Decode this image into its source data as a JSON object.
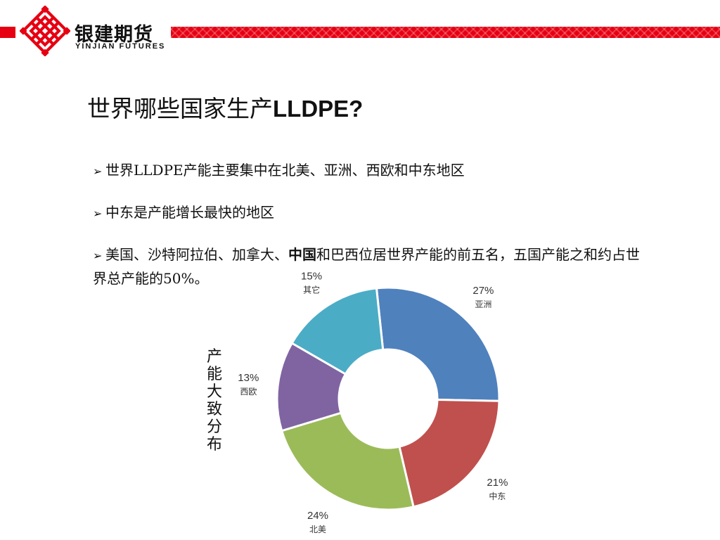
{
  "header": {
    "logo_cn": "银建期货",
    "logo_en": "YINJIAN FUTURES",
    "logo_icon": "knot-logo-icon",
    "brand_color": "#e60012"
  },
  "title": {
    "prefix": "世界哪些国家生产",
    "latin": "LLDPE?"
  },
  "bullets": [
    {
      "text": "世界LLDPE产能主要集中在北美、亚洲、西欧和中东地区"
    },
    {
      "text": "中东是产能增长最快的地区"
    },
    {
      "text_before": "美国、沙特阿拉伯、加拿大、",
      "bold": "中国",
      "text_after": "和巴西位居世界产能的前五名，五国产能之和约占世界总产能的50%。"
    }
  ],
  "chart_label": "产能大致分布",
  "chart_data": {
    "type": "pie",
    "style": "donut",
    "slices": [
      {
        "label": "亚洲",
        "value": 27,
        "display": "27%",
        "color": "#4f81bd"
      },
      {
        "label": "中东",
        "value": 21,
        "display": "21%",
        "color": "#c0504d"
      },
      {
        "label": "北美",
        "value": 24,
        "display": "24%",
        "color": "#9bbb59"
      },
      {
        "label": "西欧",
        "value": 13,
        "display": "13%",
        "color": "#8064a2"
      },
      {
        "label": "其它",
        "value": 15,
        "display": "15%",
        "color": "#4bacc6"
      }
    ]
  }
}
